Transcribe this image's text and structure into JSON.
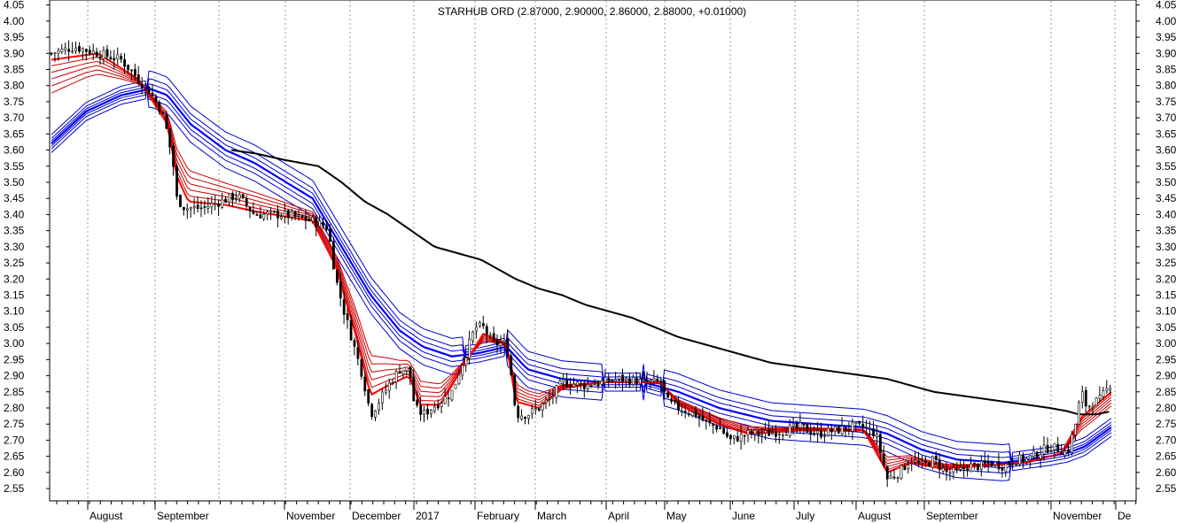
{
  "chart_data": {
    "type": "line",
    "title": "STARHUB ORD (2.87000, 2.90000, 2.86000, 2.88000, +0.01000)",
    "ylim": [
      2.52,
      4.06
    ],
    "y_ticks": [
      "4.05",
      "4.00",
      "3.95",
      "3.90",
      "3.85",
      "3.80",
      "3.75",
      "3.70",
      "3.65",
      "3.60",
      "3.55",
      "3.50",
      "3.45",
      "3.40",
      "3.35",
      "3.30",
      "3.25",
      "3.20",
      "3.15",
      "3.10",
      "3.05",
      "3.00",
      "2.95",
      "2.90",
      "2.85",
      "2.80",
      "2.75",
      "2.70",
      "2.65",
      "2.60",
      "2.55"
    ],
    "x_labels": [
      "August",
      "September",
      "November",
      "December",
      "2017",
      "February",
      "March",
      "April",
      "May",
      "June",
      "July",
      "August",
      "September",
      "November",
      "De"
    ],
    "grid": "vertical dotted at month starts",
    "colors": {
      "price": "#000000",
      "ma200": "#000000",
      "short_ma": "#cc0000",
      "short_ma_bold": "#ff0000",
      "long_ma": "#0000cc",
      "long_ma_bold": "#0000ff",
      "grid": "#999999"
    },
    "series": [
      {
        "key": "price_close",
        "points": [
          [
            0,
            3.9
          ],
          [
            20,
            3.92
          ],
          [
            40,
            3.9
          ],
          [
            60,
            3.88
          ],
          [
            75,
            3.82
          ],
          [
            85,
            3.78
          ],
          [
            95,
            3.72
          ],
          [
            100,
            3.65
          ],
          [
            105,
            3.55
          ],
          [
            108,
            3.45
          ],
          [
            115,
            3.42
          ],
          [
            130,
            3.42
          ],
          [
            145,
            3.44
          ],
          [
            160,
            3.46
          ],
          [
            175,
            3.4
          ],
          [
            200,
            3.4
          ],
          [
            225,
            3.38
          ],
          [
            238,
            3.36
          ],
          [
            245,
            3.2
          ],
          [
            252,
            3.1
          ],
          [
            260,
            3.0
          ],
          [
            268,
            2.9
          ],
          [
            275,
            2.78
          ],
          [
            282,
            2.82
          ],
          [
            292,
            2.88
          ],
          [
            300,
            2.92
          ],
          [
            308,
            2.92
          ],
          [
            313,
            2.8
          ],
          [
            320,
            2.78
          ],
          [
            335,
            2.82
          ],
          [
            345,
            2.85
          ],
          [
            355,
            2.95
          ],
          [
            365,
            3.05
          ],
          [
            372,
            3.05
          ],
          [
            380,
            3.0
          ],
          [
            392,
            3.0
          ],
          [
            397,
            2.88
          ],
          [
            400,
            2.78
          ],
          [
            410,
            2.78
          ],
          [
            420,
            2.8
          ],
          [
            430,
            2.83
          ],
          [
            440,
            2.88
          ],
          [
            460,
            2.87
          ],
          [
            475,
            2.88
          ],
          [
            490,
            2.89
          ],
          [
            510,
            2.88
          ],
          [
            525,
            2.88
          ],
          [
            530,
            2.82
          ],
          [
            540,
            2.8
          ],
          [
            555,
            2.78
          ],
          [
            565,
            2.75
          ],
          [
            575,
            2.74
          ],
          [
            585,
            2.7
          ],
          [
            600,
            2.72
          ],
          [
            615,
            2.72
          ],
          [
            630,
            2.73
          ],
          [
            645,
            2.74
          ],
          [
            660,
            2.72
          ],
          [
            675,
            2.73
          ],
          [
            690,
            2.74
          ],
          [
            700,
            2.74
          ],
          [
            710,
            2.72
          ],
          [
            715,
            2.65
          ],
          [
            720,
            2.58
          ],
          [
            730,
            2.6
          ],
          [
            740,
            2.64
          ],
          [
            750,
            2.62
          ],
          [
            760,
            2.64
          ],
          [
            770,
            2.6
          ],
          [
            780,
            2.6
          ],
          [
            790,
            2.62
          ],
          [
            800,
            2.62
          ],
          [
            810,
            2.63
          ],
          [
            820,
            2.62
          ],
          [
            830,
            2.64
          ],
          [
            840,
            2.64
          ],
          [
            850,
            2.66
          ],
          [
            860,
            2.68
          ],
          [
            870,
            2.67
          ],
          [
            875,
            2.66
          ],
          [
            882,
            2.75
          ],
          [
            887,
            2.85
          ],
          [
            892,
            2.8
          ],
          [
            897,
            2.82
          ],
          [
            902,
            2.82
          ],
          [
            908,
            2.85
          ],
          [
            913,
            2.88
          ]
        ]
      },
      {
        "key": "ma200",
        "points": [
          [
            155,
            3.6
          ],
          [
            175,
            3.59
          ],
          [
            200,
            3.57
          ],
          [
            230,
            3.55
          ],
          [
            250,
            3.5
          ],
          [
            270,
            3.44
          ],
          [
            290,
            3.4
          ],
          [
            310,
            3.35
          ],
          [
            330,
            3.3
          ],
          [
            350,
            3.28
          ],
          [
            370,
            3.26
          ],
          [
            380,
            3.24
          ],
          [
            400,
            3.2
          ],
          [
            420,
            3.17
          ],
          [
            440,
            3.15
          ],
          [
            460,
            3.12
          ],
          [
            480,
            3.1
          ],
          [
            500,
            3.08
          ],
          [
            520,
            3.05
          ],
          [
            540,
            3.02
          ],
          [
            560,
            3.0
          ],
          [
            580,
            2.98
          ],
          [
            600,
            2.96
          ],
          [
            620,
            2.94
          ],
          [
            640,
            2.93
          ],
          [
            660,
            2.92
          ],
          [
            680,
            2.91
          ],
          [
            700,
            2.9
          ],
          [
            720,
            2.89
          ],
          [
            740,
            2.87
          ],
          [
            760,
            2.85
          ],
          [
            780,
            2.84
          ],
          [
            800,
            2.83
          ],
          [
            820,
            2.82
          ],
          [
            840,
            2.81
          ],
          [
            860,
            2.8
          ],
          [
            875,
            2.79
          ],
          [
            885,
            2.78
          ],
          [
            900,
            2.78
          ],
          [
            913,
            2.79
          ]
        ]
      },
      {
        "key": "ema_short",
        "points": [
          [
            0,
            3.88
          ],
          [
            40,
            3.9
          ],
          [
            75,
            3.82
          ],
          [
            100,
            3.68
          ],
          [
            108,
            3.52
          ],
          [
            118,
            3.44
          ],
          [
            150,
            3.43
          ],
          [
            175,
            3.41
          ],
          [
            225,
            3.38
          ],
          [
            245,
            3.24
          ],
          [
            262,
            3.03
          ],
          [
            275,
            2.84
          ],
          [
            290,
            2.87
          ],
          [
            308,
            2.9
          ],
          [
            318,
            2.81
          ],
          [
            335,
            2.81
          ],
          [
            355,
            2.93
          ],
          [
            372,
            3.03
          ],
          [
            392,
            3.0
          ],
          [
            400,
            2.82
          ],
          [
            420,
            2.8
          ],
          [
            440,
            2.86
          ],
          [
            475,
            2.88
          ],
          [
            525,
            2.88
          ],
          [
            540,
            2.81
          ],
          [
            575,
            2.75
          ],
          [
            600,
            2.72
          ],
          [
            645,
            2.73
          ],
          [
            700,
            2.73
          ],
          [
            720,
            2.6
          ],
          [
            740,
            2.63
          ],
          [
            770,
            2.61
          ],
          [
            800,
            2.62
          ],
          [
            840,
            2.63
          ],
          [
            870,
            2.66
          ],
          [
            887,
            2.77
          ],
          [
            913,
            2.85
          ]
        ]
      },
      {
        "key": "ema_long",
        "points": [
          [
            0,
            3.62
          ],
          [
            30,
            3.72
          ],
          [
            60,
            3.77
          ],
          [
            85,
            3.79
          ],
          [
            100,
            3.77
          ],
          [
            120,
            3.68
          ],
          [
            150,
            3.6
          ],
          [
            175,
            3.56
          ],
          [
            225,
            3.45
          ],
          [
            250,
            3.3
          ],
          [
            275,
            3.15
          ],
          [
            300,
            3.04
          ],
          [
            320,
            2.99
          ],
          [
            345,
            2.96
          ],
          [
            368,
            2.97
          ],
          [
            392,
            2.99
          ],
          [
            410,
            2.92
          ],
          [
            440,
            2.89
          ],
          [
            475,
            2.88
          ],
          [
            510,
            2.88
          ],
          [
            540,
            2.85
          ],
          [
            575,
            2.8
          ],
          [
            620,
            2.76
          ],
          [
            660,
            2.75
          ],
          [
            700,
            2.74
          ],
          [
            720,
            2.72
          ],
          [
            750,
            2.67
          ],
          [
            780,
            2.64
          ],
          [
            820,
            2.63
          ],
          [
            860,
            2.65
          ],
          [
            875,
            2.66
          ],
          [
            890,
            2.68
          ],
          [
            913,
            2.74
          ]
        ]
      }
    ]
  }
}
